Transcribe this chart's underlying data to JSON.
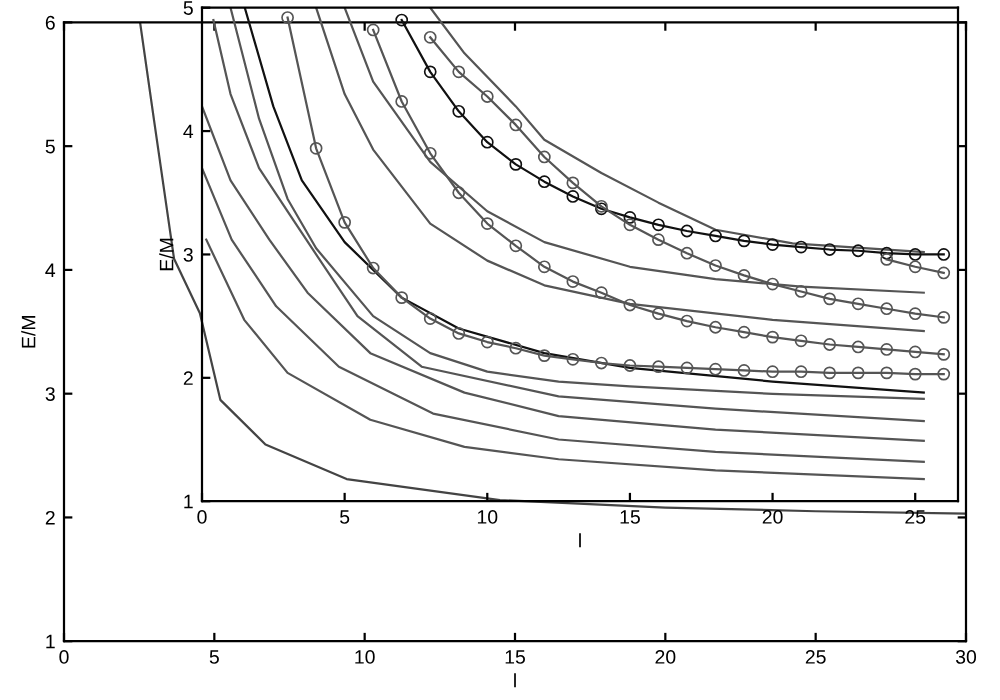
{
  "chart_data": [
    {
      "type": "line",
      "xlabel": "l",
      "ylabel": "E/M",
      "xlim": [
        0,
        30
      ],
      "ylim": [
        1,
        6
      ],
      "xticks": [
        0,
        5,
        10,
        15,
        20,
        25,
        30
      ],
      "yticks": [
        1,
        2,
        3,
        4,
        5,
        6
      ],
      "grid": false,
      "legend": false,
      "series": [
        {
          "color": "#444444",
          "x": [
            2.53,
            3.0,
            3.66,
            4.52,
            5.2,
            6.7,
            9.4,
            14.5,
            20,
            25,
            30
          ],
          "values": [
            6.0,
            5.2,
            4.09,
            3.65,
            2.95,
            2.59,
            2.31,
            2.14,
            2.08,
            2.05,
            2.03
          ]
        }
      ]
    },
    {
      "type": "line",
      "xlabel": "l",
      "ylabel": "E/M",
      "xlim": [
        0,
        26.5
      ],
      "ylim": [
        1,
        5
      ],
      "xticks": [
        0,
        5,
        10,
        15,
        20,
        25
      ],
      "yticks": [
        1,
        2,
        3,
        4,
        5
      ],
      "grid": false,
      "legend": false,
      "series": [
        {
          "color": "#555555",
          "marker": "none",
          "x": [
            8,
            9.2,
            11,
            12,
            14,
            16,
            18,
            20.7,
            25.3
          ],
          "values": [
            5.0,
            4.63,
            4.2,
            3.93,
            3.66,
            3.42,
            3.2,
            3.09,
            3.02
          ]
        },
        {
          "color": "#555555",
          "marker": "none",
          "x": [
            5,
            6,
            8,
            10,
            12,
            15,
            18,
            21,
            25.3
          ],
          "values": [
            5.0,
            4.4,
            3.75,
            3.35,
            3.1,
            2.9,
            2.8,
            2.74,
            2.69
          ]
        },
        {
          "color": "#555555",
          "marker": "none",
          "x": [
            4,
            5,
            6,
            8,
            10,
            12,
            15,
            20,
            25.3
          ],
          "values": [
            5.0,
            4.3,
            3.85,
            3.25,
            2.95,
            2.75,
            2.6,
            2.47,
            2.38
          ]
        },
        {
          "color": "#111111",
          "marker": "none",
          "x": [
            1.5,
            2.5,
            3.5,
            5,
            7,
            9,
            12,
            15,
            20,
            25.3
          ],
          "values": [
            5.0,
            4.2,
            3.6,
            3.1,
            2.65,
            2.4,
            2.2,
            2.08,
            1.97,
            1.88
          ]
        },
        {
          "color": "#555555",
          "marker": "none",
          "x": [
            1,
            2,
            3,
            4,
            6,
            8,
            10,
            12.5,
            15,
            20,
            25.3
          ],
          "values": [
            5.0,
            4.1,
            3.45,
            3.05,
            2.5,
            2.2,
            2.05,
            1.97,
            1.93,
            1.87,
            1.83
          ]
        },
        {
          "color": "#555555",
          "marker": "none",
          "x": [
            0.4,
            1,
            2,
            3,
            4,
            5.45,
            7.7,
            12.5,
            18,
            25.3
          ],
          "values": [
            4.9,
            4.3,
            3.7,
            3.35,
            3.0,
            2.5,
            2.09,
            1.85,
            1.75,
            1.65
          ]
        },
        {
          "color": "#555555",
          "marker": "none",
          "x": [
            0,
            1,
            2.36,
            3.7,
            5.9,
            9.2,
            12.5,
            18,
            25.3
          ],
          "values": [
            4.2,
            3.6,
            3.12,
            2.69,
            2.2,
            1.88,
            1.69,
            1.58,
            1.49
          ]
        },
        {
          "color": "#555555",
          "marker": "none",
          "x": [
            0,
            1.04,
            2.6,
            4.8,
            8.1,
            12.5,
            18,
            25.3
          ],
          "values": [
            3.7,
            3.12,
            2.58,
            2.09,
            1.71,
            1.5,
            1.4,
            1.32
          ]
        },
        {
          "color": "#555555",
          "marker": "none",
          "x": [
            0.15,
            1.48,
            3.0,
            5.9,
            9.2,
            12.5,
            18,
            25.3
          ],
          "values": [
            3.12,
            2.47,
            2.04,
            1.66,
            1.44,
            1.34,
            1.25,
            1.18
          ]
        },
        {
          "color": "#555555",
          "marker": "circle",
          "x": [
            3,
            4,
            5,
            6,
            7,
            8,
            9,
            10,
            11,
            12,
            13,
            14,
            15,
            16,
            17,
            18,
            19,
            20,
            21,
            22,
            23,
            24,
            25,
            26
          ],
          "values": [
            4.92,
            3.86,
            3.26,
            2.89,
            2.65,
            2.48,
            2.36,
            2.29,
            2.24,
            2.18,
            2.15,
            2.12,
            2.1,
            2.09,
            2.08,
            2.07,
            2.06,
            2.05,
            2.05,
            2.04,
            2.04,
            2.04,
            2.03,
            2.03
          ]
        },
        {
          "color": "#555555",
          "marker": "circle",
          "x": [
            6,
            7,
            8,
            9,
            10,
            11,
            12,
            13,
            14,
            15,
            16,
            17,
            18,
            19,
            20,
            21,
            22,
            23,
            24,
            25,
            26
          ],
          "values": [
            4.82,
            4.24,
            3.82,
            3.5,
            3.25,
            3.07,
            2.9,
            2.78,
            2.69,
            2.59,
            2.52,
            2.46,
            2.41,
            2.37,
            2.33,
            2.3,
            2.27,
            2.25,
            2.23,
            2.21,
            2.19
          ]
        },
        {
          "color": "#111111",
          "marker": "circle",
          "x": [
            7,
            8,
            9,
            10,
            11,
            12,
            13,
            14,
            15,
            16,
            17,
            18,
            19,
            20,
            21,
            22,
            23,
            24,
            25,
            26
          ],
          "values": [
            4.9,
            4.48,
            4.16,
            3.91,
            3.73,
            3.59,
            3.47,
            3.37,
            3.3,
            3.24,
            3.19,
            3.15,
            3.11,
            3.08,
            3.06,
            3.04,
            3.03,
            3.01,
            3.0,
            3.0
          ]
        },
        {
          "color": "#555555",
          "marker": "circle",
          "x": [
            8,
            9,
            10,
            11,
            12,
            13,
            14,
            15,
            16,
            17,
            18,
            19,
            20,
            21,
            22,
            23,
            24,
            25,
            26
          ],
          "values": [
            4.76,
            4.48,
            4.28,
            4.05,
            3.79,
            3.58,
            3.39,
            3.24,
            3.12,
            3.01,
            2.91,
            2.83,
            2.76,
            2.7,
            2.64,
            2.6,
            2.56,
            2.52,
            2.49
          ]
        },
        {
          "color": "#555555",
          "marker": "circle",
          "x": [
            24,
            25,
            26
          ],
          "values": [
            2.96,
            2.9,
            2.85
          ]
        }
      ]
    }
  ]
}
